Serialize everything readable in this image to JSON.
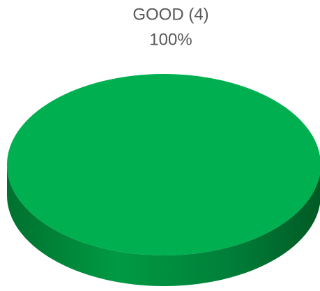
{
  "chart_data": {
    "type": "pie",
    "categories": [
      "GOOD (4)"
    ],
    "values": [
      100
    ],
    "value_labels": [
      "100%"
    ],
    "colors": [
      "#00b050"
    ],
    "three_d": true
  }
}
